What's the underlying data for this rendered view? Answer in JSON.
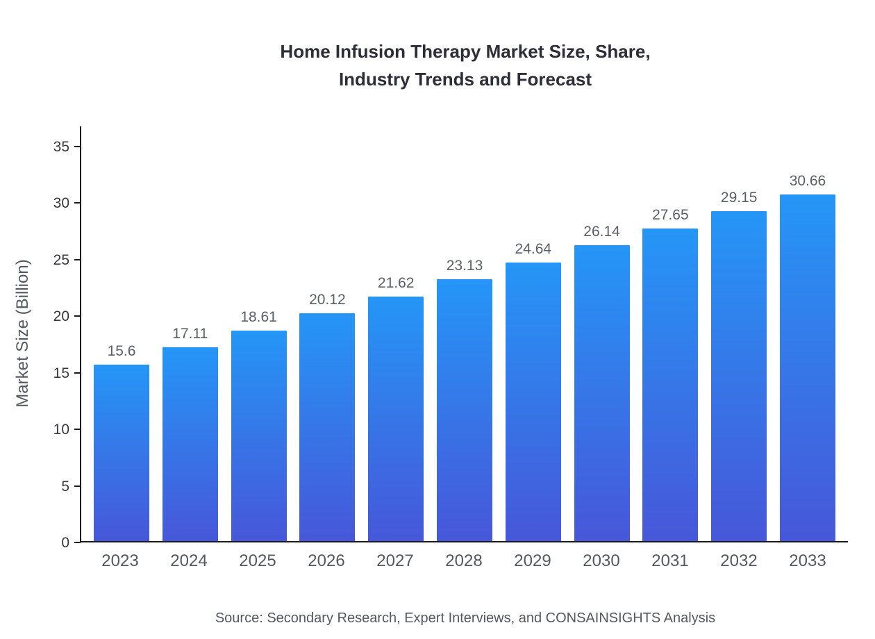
{
  "chart": {
    "title_line1": "Home Infusion Therapy Market Size, Share,",
    "title_line2": "Industry Trends and Forecast",
    "source": "Source: Secondary Research, Expert Interviews, and CONSAINSIGHTS Analysis"
  },
  "chart_data": {
    "type": "bar",
    "title": "Home Infusion Therapy Market Size, Share, Industry Trends and Forecast",
    "categories": [
      "2023",
      "2024",
      "2025",
      "2026",
      "2027",
      "2028",
      "2029",
      "2030",
      "2031",
      "2032",
      "2033"
    ],
    "values": [
      15.6,
      17.11,
      18.61,
      20.12,
      21.62,
      23.13,
      24.64,
      26.14,
      27.65,
      29.15,
      30.66
    ],
    "xlabel": "",
    "ylabel": "Market Size (Billion)",
    "ylim": [
      0,
      35
    ],
    "yticks": [
      0,
      5,
      10,
      15,
      20,
      25,
      30,
      35
    ],
    "grid": false,
    "legend": false,
    "colors": {
      "bar_gradient_top": "#2596f7",
      "bar_gradient_bottom": "#4757d9",
      "axis": "#1a1a1a",
      "label_gray": "#55595f"
    }
  }
}
